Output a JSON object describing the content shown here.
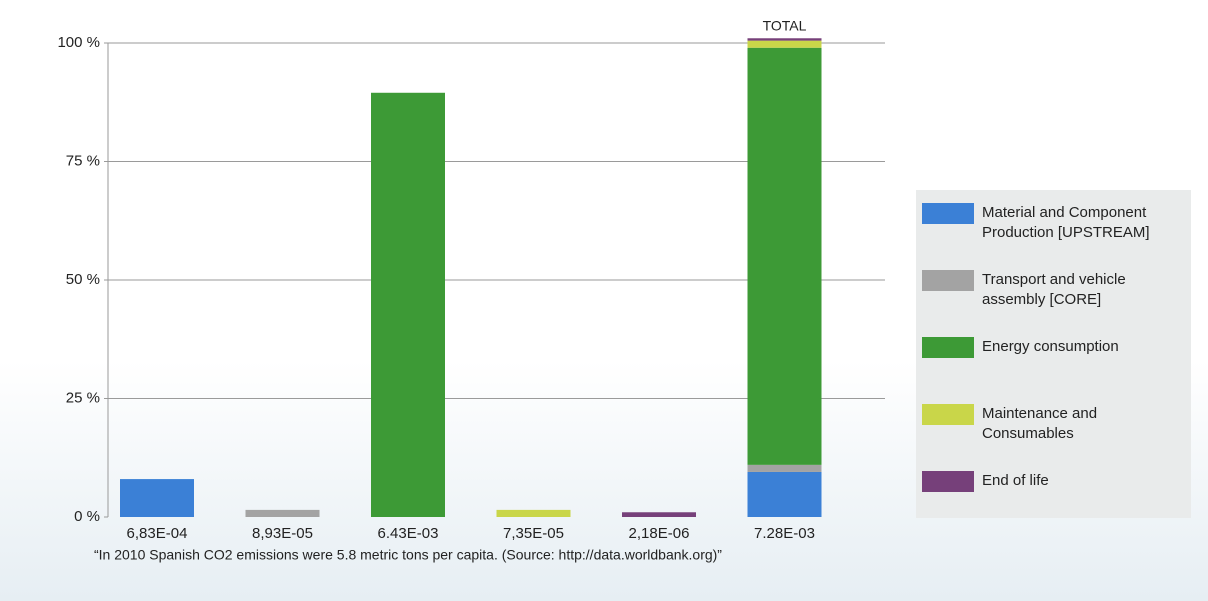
{
  "chart_data": {
    "type": "bar",
    "stacked": true,
    "categories": [
      "6,83E-04",
      "8,93E-05",
      "6.43E-03",
      "7,35E-05",
      "2,18E-06",
      "7.28E-03"
    ],
    "series": [
      {
        "name": "Material and Component Production [UPSTREAM]",
        "color": "#3b80d6",
        "values": [
          8,
          null,
          null,
          null,
          null,
          9.5
        ]
      },
      {
        "name": "Transport and vehicle assembly [CORE]",
        "color": "#a3a3a3",
        "values": [
          null,
          1.5,
          null,
          null,
          null,
          1.5
        ]
      },
      {
        "name": "Energy consumption",
        "color": "#3d9a36",
        "values": [
          null,
          null,
          89.5,
          null,
          null,
          88
        ]
      },
      {
        "name": "Maintenance and Consumables",
        "color": "#c9d649",
        "values": [
          null,
          null,
          null,
          1.5,
          null,
          1.5
        ]
      },
      {
        "name": "End of life",
        "color": "#76407a",
        "values": [
          null,
          null,
          null,
          null,
          1,
          0.5
        ]
      }
    ],
    "ylim": [
      0,
      100
    ],
    "yticks": [
      {
        "value": 0,
        "label": "0 %"
      },
      {
        "value": 25,
        "label": "25 %"
      },
      {
        "value": 50,
        "label": "50 %"
      },
      {
        "value": 75,
        "label": "75 %"
      },
      {
        "value": 100,
        "label": "100 %"
      }
    ],
    "grid": true,
    "annotations": [
      "TOTAL"
    ],
    "footnote": "“In 2010 Spanish CO2 emissions were 5.8 metric tons per capita. (Source: http://data.worldbank.org)”",
    "legend": "right"
  }
}
